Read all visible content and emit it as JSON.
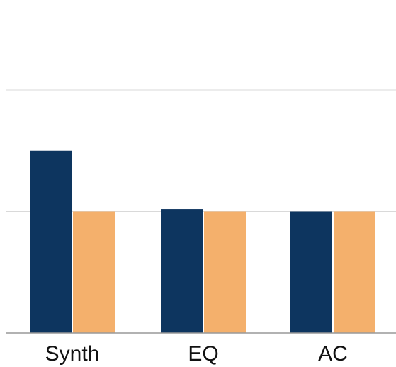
{
  "chart_data": {
    "type": "bar",
    "categories": [
      "Synth",
      "EQ",
      "AC"
    ],
    "series": [
      {
        "values": [
          1.5,
          1.02,
          1.0
        ],
        "color": "#0d355f"
      },
      {
        "values": [
          1.0,
          1.0,
          1.0
        ],
        "color": "#f4b06c"
      }
    ],
    "ylim": [
      0,
      2
    ],
    "grid": true,
    "axis_color": "#999999",
    "grid_color": "#d9d9d9"
  }
}
